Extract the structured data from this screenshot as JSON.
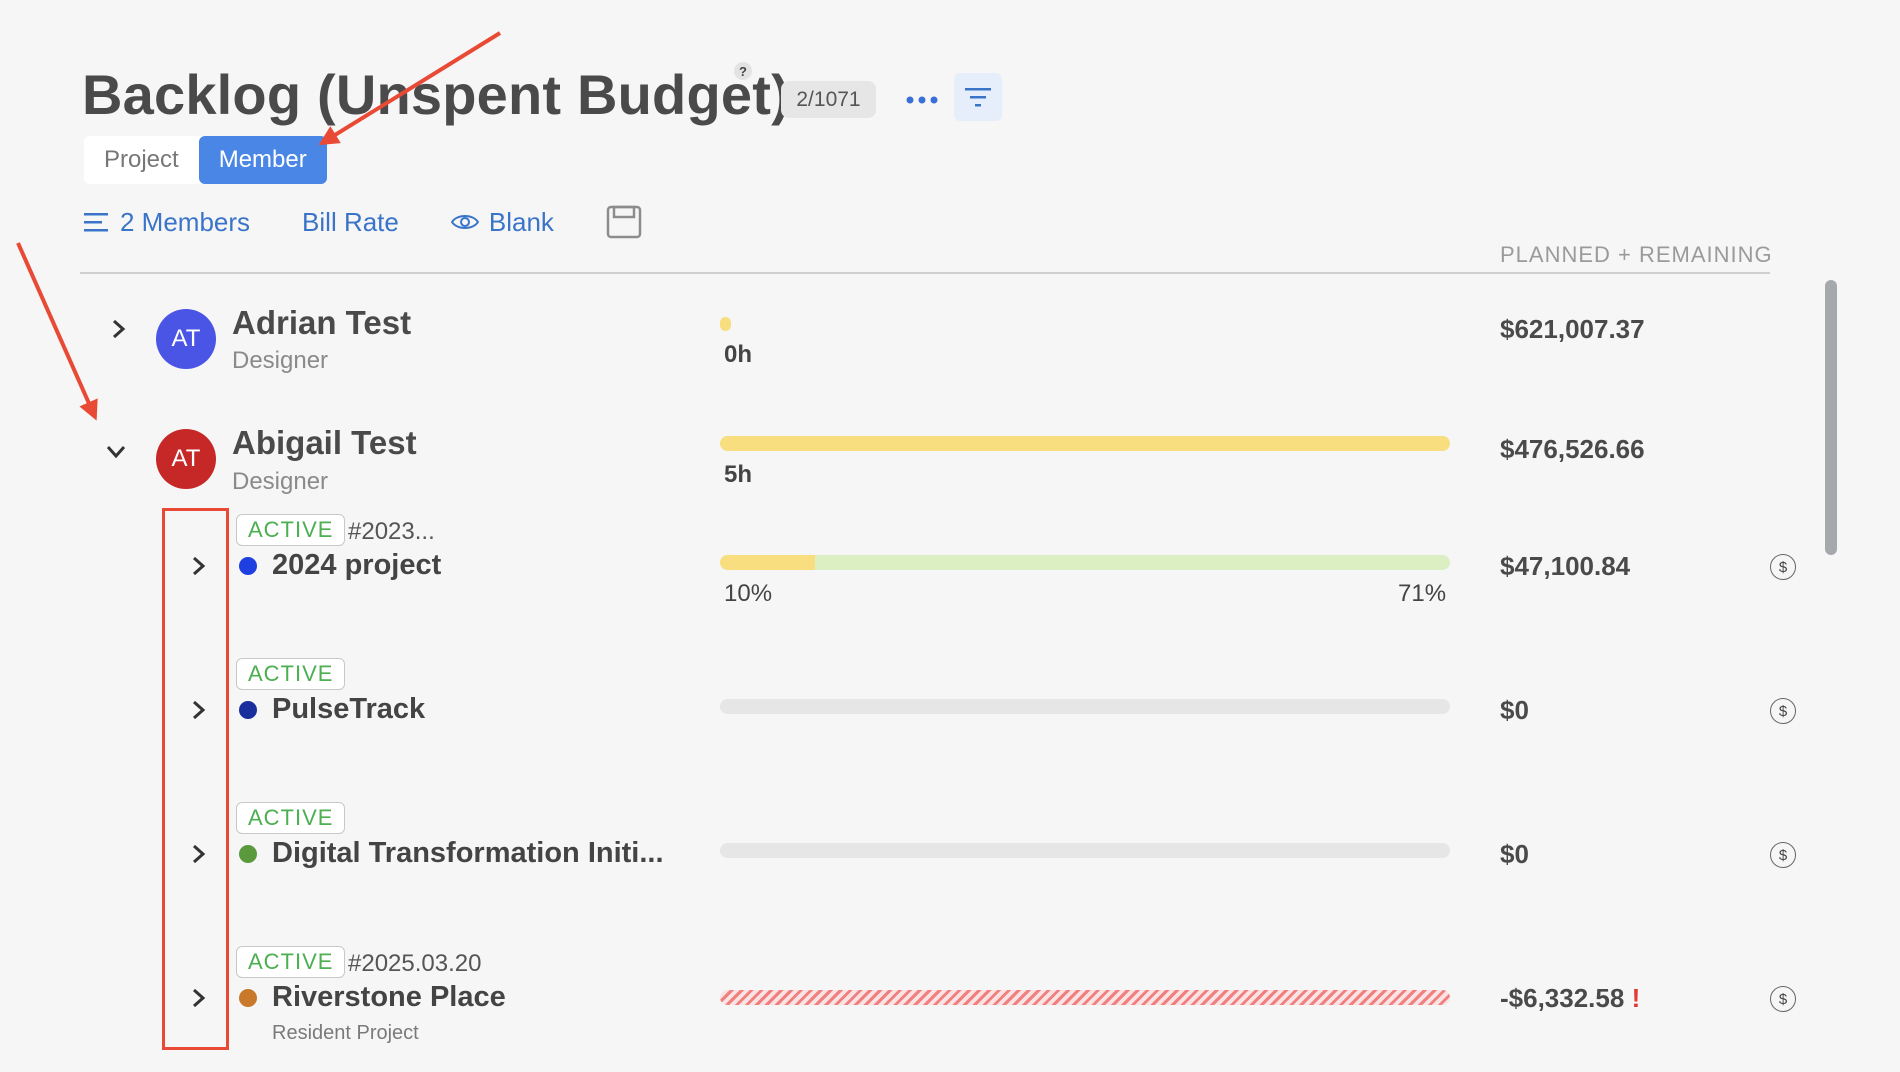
{
  "header": {
    "title": "Backlog (Unspent Budget)",
    "help": "?",
    "count": "2/1071",
    "more": "•••"
  },
  "view_toggle": {
    "options": [
      "Project",
      "Member"
    ],
    "selected": "Member"
  },
  "toolbar": {
    "members_label": "2 Members",
    "bill_rate_label": "Bill Rate",
    "blank_label": "Blank"
  },
  "columns": {
    "planned_remaining": "PLANNED + REMAINING"
  },
  "members": [
    {
      "initials": "AT",
      "name": "Adrian Test",
      "role": "Designer",
      "hours": "0h",
      "amount": "$621,007.37",
      "avatar_color": "#4a55e6",
      "expanded": false,
      "fill": 0.01
    },
    {
      "initials": "AT",
      "name": "Abigail Test",
      "role": "Designer",
      "hours": "5h",
      "amount": "$476,526.66",
      "avatar_color": "#c62828",
      "expanded": true,
      "fill": 1.0
    }
  ],
  "projects": [
    {
      "status": "ACTIVE",
      "number": "#2023...",
      "name": "2024 project",
      "dot_color": "#1f3fe0",
      "amount": "$47,100.84",
      "progress_left": "10%",
      "progress_right": "71%",
      "spent_fraction": 0.13,
      "bar": "spent"
    },
    {
      "status": "ACTIVE",
      "number": "",
      "name": "PulseTrack",
      "dot_color": "#1a2f9e",
      "amount": "$0",
      "bar": "empty"
    },
    {
      "status": "ACTIVE",
      "number": "",
      "name": "Digital Transformation Initi...",
      "dot_color": "#5b9a3c",
      "amount": "$0",
      "bar": "empty"
    },
    {
      "status": "ACTIVE",
      "number": "#2025.03.20",
      "name": "Riverstone Place",
      "dot_color": "#c87a2a",
      "subtitle": "Resident Project",
      "amount": "-$6,332.58",
      "warning": "!",
      "bar": "overbudget"
    }
  ],
  "colors": {
    "accent": "#4a86e6",
    "link": "#3a74c9",
    "yellow": "#f8de7e",
    "green_light": "#dcefc2",
    "status_green": "#4caf50",
    "overbudget": "#f08080",
    "annotation": "#e84a36"
  }
}
